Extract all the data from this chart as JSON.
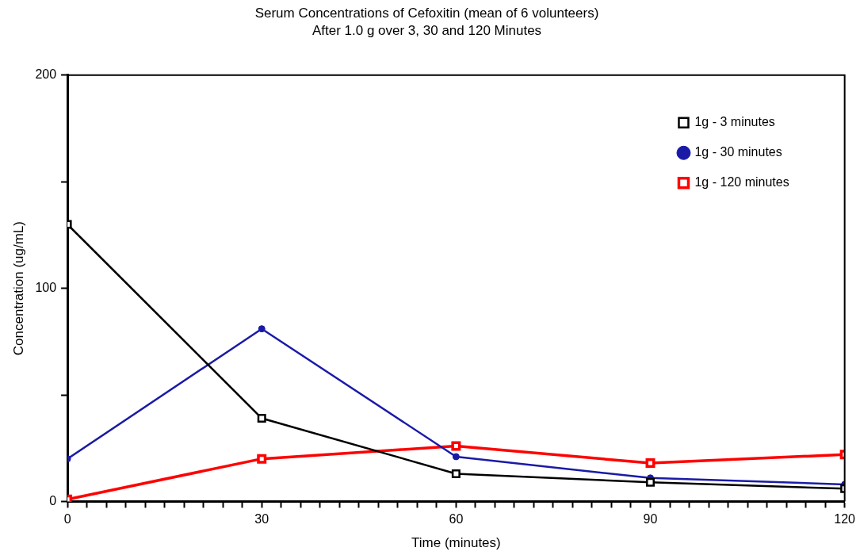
{
  "chart_data": {
    "type": "line",
    "title": "Serum Concentrations of Cefoxitin (mean of 6 volunteers)",
    "subtitle": "After 1.0 g over 3, 30 and 120 Minutes",
    "xlabel": "Time (minutes)",
    "ylabel": "Concentration (ug/mL)",
    "x": [
      0,
      30,
      60,
      90,
      120
    ],
    "series": [
      {
        "name": "1g - 3 minutes",
        "color": "#000000",
        "marker": "square",
        "values": [
          130,
          39,
          13,
          9,
          6
        ]
      },
      {
        "name": "1g - 30 minutes",
        "color": "#1a1aa6",
        "marker": "circle",
        "values": [
          20,
          81,
          21,
          11,
          8
        ]
      },
      {
        "name": "1g - 120 minutes",
        "color": "#ff0000",
        "marker": "square",
        "values": [
          1,
          20,
          26,
          18,
          22
        ]
      }
    ],
    "xlim": [
      0,
      120
    ],
    "xticks": [
      0,
      {
        "value": 3,
        "label": null
      },
      {
        "value": 6,
        "label": null
      },
      {
        "value": 9,
        "label": null
      },
      {
        "value": 12,
        "label": null
      },
      {
        "value": 15,
        "label": null
      },
      {
        "value": 18,
        "label": null
      },
      {
        "value": 21,
        "label": null
      },
      {
        "value": 24,
        "label": null
      },
      {
        "value": 27,
        "label": null
      },
      30,
      {
        "value": 33,
        "label": null
      },
      {
        "value": 36,
        "label": null
      },
      {
        "value": 39,
        "label": null
      },
      {
        "value": 42,
        "label": null
      },
      {
        "value": 45,
        "label": null
      },
      {
        "value": 48,
        "label": null
      },
      {
        "value": 51,
        "label": null
      },
      {
        "value": 54,
        "label": null
      },
      {
        "value": 57,
        "label": null
      },
      60,
      {
        "value": 63,
        "label": null
      },
      {
        "value": 66,
        "label": null
      },
      {
        "value": 69,
        "label": null
      },
      {
        "value": 72,
        "label": null
      },
      {
        "value": 75,
        "label": null
      },
      {
        "value": 78,
        "label": null
      },
      {
        "value": 81,
        "label": null
      },
      {
        "value": 84,
        "label": null
      },
      {
        "value": 87,
        "label": null
      },
      90,
      {
        "value": 93,
        "label": null
      },
      {
        "value": 96,
        "label": null
      },
      {
        "value": 99,
        "label": null
      },
      {
        "value": 102,
        "label": null
      },
      {
        "value": 105,
        "label": null
      },
      {
        "value": 108,
        "label": null
      },
      {
        "value": 111,
        "label": null
      },
      {
        "value": 114,
        "label": null
      },
      {
        "value": 117,
        "label": null
      },
      120
    ],
    "ylim": [
      0,
      200
    ],
    "yticks": [
      0,
      {
        "value": 50,
        "label": null
      },
      100,
      {
        "value": 150,
        "label": null
      },
      200
    ],
    "grid": false,
    "legend": "top right"
  }
}
